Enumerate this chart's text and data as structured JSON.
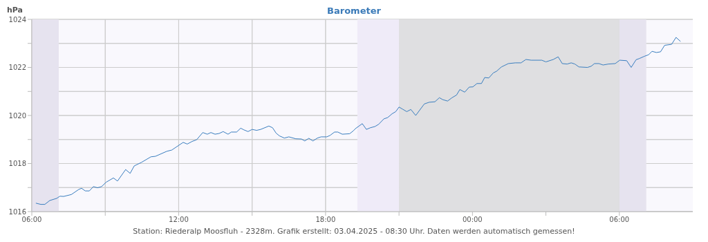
{
  "chart_data": {
    "type": "line",
    "title": "Barometer",
    "ylabel": "hPa",
    "color": "#3a7ebf",
    "marker": "none",
    "line_style": "solid",
    "grid": true,
    "annotations": [
      "Station: Riederalp Moosfluh - 2328m. Grafik erstellt: 03.04.2025 - 08:30 Uhr. Daten werden automatisch gemessen!"
    ],
    "xlim": [
      "2025-04-02T06:00",
      "2025-04-03T09:00"
    ],
    "xticks": [
      {
        "value": "2025-04-02T06:00",
        "label": "06:00"
      },
      {
        "value": "2025-04-02T09:00",
        "label": null
      },
      {
        "value": "2025-04-02T12:00",
        "label": "12:00"
      },
      {
        "value": "2025-04-02T15:00",
        "label": null
      },
      {
        "value": "2025-04-02T18:00",
        "label": "18:00"
      },
      {
        "value": "2025-04-02T21:00",
        "label": null
      },
      {
        "value": "2025-04-03T00:00",
        "label": "00:00"
      },
      {
        "value": "2025-04-03T03:00",
        "label": null
      },
      {
        "value": "2025-04-03T06:00",
        "label": "06:00"
      }
    ],
    "ylim": [
      1016,
      1024
    ],
    "yticks": [
      1016,
      {
        "value": 1017,
        "label": null
      },
      1018,
      {
        "value": 1019,
        "label": null
      },
      1020,
      {
        "value": 1021,
        "label": null
      },
      1022,
      {
        "value": 1023,
        "label": null
      },
      1024
    ],
    "bands": [
      {
        "axis": "x",
        "from": "2025-04-02T06:00",
        "to": "2025-04-02T07:06",
        "color": "#e6e3ef"
      },
      {
        "axis": "x",
        "from": "2025-04-02T19:18",
        "to": "2025-04-02T21:00",
        "color": "#efebf8"
      },
      {
        "axis": "x",
        "from": "2025-04-02T21:00",
        "to": "2025-04-03T06:00",
        "color": "#dfdfe1"
      },
      {
        "axis": "x",
        "from": "2025-04-03T06:00",
        "to": "2025-04-03T07:06",
        "color": "#e6e3ef"
      }
    ],
    "x": [
      "2025-04-02T06:10",
      "2025-04-02T06:22",
      "2025-04-02T06:32",
      "2025-04-02T06:44",
      "2025-04-02T07:01",
      "2025-04-02T07:09",
      "2025-04-02T07:18",
      "2025-04-02T07:37",
      "2025-04-02T07:55",
      "2025-04-02T08:02",
      "2025-04-02T08:11",
      "2025-04-02T08:21",
      "2025-04-02T08:31",
      "2025-04-02T08:41",
      "2025-04-02T08:51",
      "2025-04-02T09:02",
      "2025-04-02T09:20",
      "2025-04-02T09:30",
      "2025-04-02T09:50",
      "2025-04-02T10:01",
      "2025-04-02T10:11",
      "2025-04-02T10:29",
      "2025-04-02T10:52",
      "2025-04-02T11:03",
      "2025-04-02T11:31",
      "2025-04-02T11:43",
      "2025-04-02T12:11",
      "2025-04-02T12:21",
      "2025-04-02T12:33",
      "2025-04-02T12:44",
      "2025-04-02T12:59",
      "2025-04-02T13:10",
      "2025-04-02T13:19",
      "2025-04-02T13:29",
      "2025-04-02T13:39",
      "2025-04-02T13:49",
      "2025-04-02T14:01",
      "2025-04-02T14:09",
      "2025-04-02T14:22",
      "2025-04-02T14:32",
      "2025-04-02T14:40",
      "2025-04-02T14:50",
      "2025-04-02T15:00",
      "2025-04-02T15:11",
      "2025-04-02T15:21",
      "2025-04-02T15:31",
      "2025-04-02T15:41",
      "2025-04-02T15:50",
      "2025-04-02T15:59",
      "2025-04-02T16:07",
      "2025-04-02T16:19",
      "2025-04-02T16:30",
      "2025-04-02T16:47",
      "2025-04-02T17:01",
      "2025-04-02T17:09",
      "2025-04-02T17:19",
      "2025-04-02T17:29",
      "2025-04-02T17:40",
      "2025-04-02T17:49",
      "2025-04-02T18:03",
      "2025-04-02T18:11",
      "2025-04-02T18:22",
      "2025-04-02T18:30",
      "2025-04-02T18:41",
      "2025-04-02T18:59",
      "2025-04-02T19:08",
      "2025-04-02T19:13",
      "2025-04-02T19:30",
      "2025-04-02T19:40",
      "2025-04-02T19:50",
      "2025-04-02T20:01",
      "2025-04-02T20:10",
      "2025-04-02T20:23",
      "2025-04-02T20:32",
      "2025-04-02T20:43",
      "2025-04-02T20:52",
      "2025-04-02T21:00",
      "2025-04-02T21:09",
      "2025-04-02T21:19",
      "2025-04-02T21:29",
      "2025-04-02T21:41",
      "2025-04-02T21:51",
      "2025-04-02T22:02",
      "2025-04-02T22:14",
      "2025-04-02T22:28",
      "2025-04-02T22:39",
      "2025-04-02T22:47",
      "2025-04-02T22:59",
      "2025-04-02T23:10",
      "2025-04-02T23:21",
      "2025-04-02T23:29",
      "2025-04-02T23:41",
      "2025-04-02T23:52",
      "2025-04-03T00:01",
      "2025-04-03T00:11",
      "2025-04-03T00:22",
      "2025-04-03T00:30",
      "2025-04-03T00:40",
      "2025-04-03T00:51",
      "2025-04-03T00:59",
      "2025-04-03T01:11",
      "2025-04-03T01:28",
      "2025-04-03T01:45",
      "2025-04-03T01:59",
      "2025-04-03T02:11",
      "2025-04-03T02:24",
      "2025-04-03T02:50",
      "2025-04-03T03:00",
      "2025-04-03T03:18",
      "2025-04-03T03:30",
      "2025-04-03T03:40",
      "2025-04-03T03:52",
      "2025-04-03T04:02",
      "2025-04-03T04:11",
      "2025-04-03T04:21",
      "2025-04-03T04:42",
      "2025-04-03T04:51",
      "2025-04-03T04:59",
      "2025-04-03T05:10",
      "2025-04-03T05:20",
      "2025-04-03T05:33",
      "2025-04-03T05:50",
      "2025-04-03T06:01",
      "2025-04-03T06:18",
      "2025-04-03T06:29",
      "2025-04-03T06:41",
      "2025-04-03T06:49",
      "2025-04-03T07:01",
      "2025-04-03T07:12",
      "2025-04-03T07:20",
      "2025-04-03T07:31",
      "2025-04-03T07:41",
      "2025-04-03T07:51",
      "2025-04-03T08:08",
      "2025-04-03T08:19",
      "2025-04-03T08:30"
    ],
    "values": [
      1016.35,
      1016.3,
      1016.3,
      1016.46,
      1016.55,
      1016.64,
      1016.63,
      1016.71,
      1016.92,
      1016.97,
      1016.86,
      1016.86,
      1017.04,
      1016.99,
      1017.04,
      1017.22,
      1017.4,
      1017.27,
      1017.75,
      1017.59,
      1017.9,
      1018.05,
      1018.28,
      1018.3,
      1018.51,
      1018.56,
      1018.88,
      1018.81,
      1018.92,
      1018.99,
      1019.29,
      1019.22,
      1019.29,
      1019.22,
      1019.25,
      1019.33,
      1019.22,
      1019.31,
      1019.31,
      1019.47,
      1019.4,
      1019.33,
      1019.42,
      1019.38,
      1019.42,
      1019.49,
      1019.56,
      1019.49,
      1019.26,
      1019.15,
      1019.06,
      1019.11,
      1019.03,
      1019.02,
      1018.94,
      1019.05,
      1018.94,
      1019.06,
      1019.11,
      1019.11,
      1019.17,
      1019.31,
      1019.31,
      1019.22,
      1019.24,
      1019.36,
      1019.45,
      1019.66,
      1019.42,
      1019.49,
      1019.54,
      1019.63,
      1019.86,
      1019.91,
      1020.07,
      1020.16,
      1020.35,
      1020.26,
      1020.16,
      1020.25,
      1020.0,
      1020.23,
      1020.48,
      1020.55,
      1020.57,
      1020.74,
      1020.66,
      1020.6,
      1020.74,
      1020.85,
      1021.08,
      1020.97,
      1021.18,
      1021.19,
      1021.33,
      1021.33,
      1021.58,
      1021.56,
      1021.77,
      1021.84,
      1022.02,
      1022.16,
      1022.19,
      1022.19,
      1022.33,
      1022.3,
      1022.3,
      1022.23,
      1022.33,
      1022.44,
      1022.16,
      1022.14,
      1022.19,
      1022.14,
      1022.02,
      1022.0,
      1022.05,
      1022.16,
      1022.16,
      1022.1,
      1022.14,
      1022.16,
      1022.3,
      1022.28,
      1022.0,
      1022.32,
      1022.37,
      1022.46,
      1022.53,
      1022.67,
      1022.62,
      1022.65,
      1022.92,
      1022.96,
      1023.25,
      1023.08
    ]
  }
}
